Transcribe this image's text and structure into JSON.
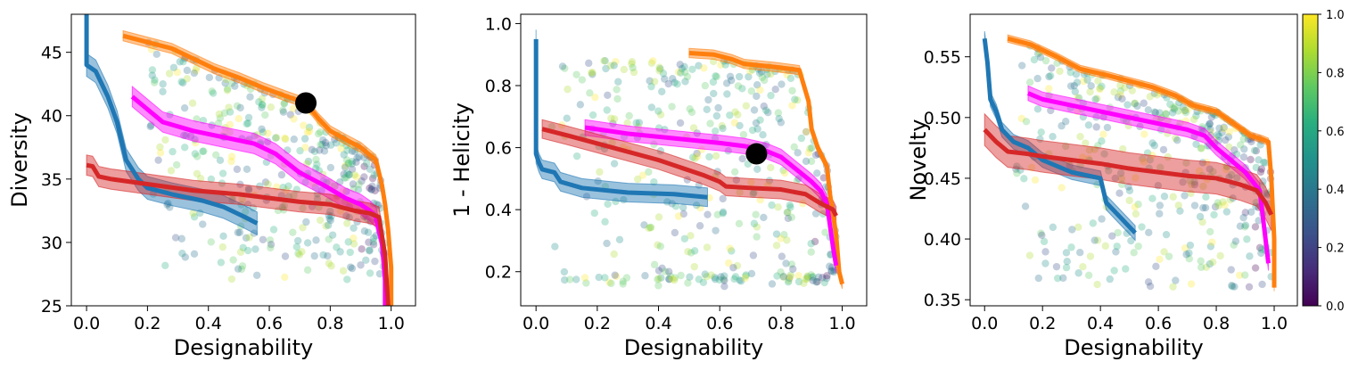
{
  "chart_data": [
    {
      "type": "scatter",
      "title": "",
      "xlabel": "Designability",
      "ylabel": "Diversity",
      "xlim": [
        -0.05,
        1.08
      ],
      "ylim": [
        25,
        48
      ],
      "xticks": [
        0.0,
        0.2,
        0.4,
        0.6,
        0.8,
        1.0
      ],
      "xtick_labels": [
        "0.0",
        "0.2",
        "0.4",
        "0.6",
        "0.8",
        "1.0"
      ],
      "yticks": [
        25,
        30,
        35,
        40,
        45
      ],
      "ytick_labels": [
        "25",
        "30",
        "35",
        "40",
        "45"
      ],
      "scatter_region": {
        "x": [
          0.2,
          0.98
        ],
        "y": [
          27,
          46
        ],
        "note": "dense cloud below orange frontier, colored by viridis value"
      },
      "highlight_point": {
        "x": 0.72,
        "y": 41.0
      },
      "series": [
        {
          "name": "blue",
          "color": "#1f77b4",
          "band": 0.9,
          "x": [
            0.0,
            0.0,
            0.0,
            0.03,
            0.07,
            0.1,
            0.13,
            0.17,
            0.2,
            0.28,
            0.38,
            0.45,
            0.52,
            0.56
          ],
          "y": [
            48,
            47,
            44,
            43.5,
            41.5,
            39.5,
            36.5,
            35.0,
            34.3,
            33.8,
            33.3,
            32.8,
            32.0,
            31.5
          ]
        },
        {
          "name": "orange",
          "color": "#ff7f0e",
          "band": 0.4,
          "x": [
            0.12,
            0.2,
            0.28,
            0.35,
            0.42,
            0.5,
            0.58,
            0.66,
            0.72,
            0.76,
            0.8,
            0.86,
            0.9,
            0.95,
            0.97,
            0.98,
            0.99,
            1.0,
            1.0
          ],
          "y": [
            46.3,
            45.8,
            45.3,
            44.5,
            43.7,
            43.0,
            42.2,
            41.5,
            41.0,
            39.8,
            38.8,
            38.0,
            37.5,
            36.5,
            34.5,
            33.0,
            31.0,
            28.0,
            25.0
          ]
        },
        {
          "name": "magenta",
          "color": "#ff00ff",
          "band": 0.8,
          "x": [
            0.15,
            0.2,
            0.25,
            0.35,
            0.45,
            0.55,
            0.62,
            0.7,
            0.78,
            0.85,
            0.9,
            0.93,
            0.95,
            0.96,
            0.97,
            0.98,
            0.98
          ],
          "y": [
            41.5,
            40.5,
            39.5,
            38.8,
            38.3,
            37.8,
            37.0,
            35.5,
            34.5,
            33.5,
            33.0,
            32.5,
            32.0,
            31.0,
            30.0,
            27.0,
            25.0
          ]
        },
        {
          "name": "red",
          "color": "#d62728",
          "band": 0.8,
          "x": [
            0.0,
            0.02,
            0.04,
            0.08,
            0.2,
            0.35,
            0.5,
            0.6,
            0.7,
            0.8,
            0.88,
            0.93,
            0.96,
            0.98,
            0.99
          ],
          "y": [
            36.1,
            36.0,
            35.2,
            35.0,
            34.6,
            34.1,
            33.8,
            33.5,
            33.2,
            33.0,
            32.5,
            32.3,
            32.0,
            29.0,
            25.0
          ]
        }
      ]
    },
    {
      "type": "scatter",
      "title": "",
      "xlabel": "Designability",
      "ylabel": "1 - Helicity",
      "xlim": [
        -0.05,
        1.08
      ],
      "ylim": [
        0.09,
        1.03
      ],
      "xticks": [
        0.0,
        0.2,
        0.4,
        0.6,
        0.8,
        1.0
      ],
      "xtick_labels": [
        "0.0",
        "0.2",
        "0.4",
        "0.6",
        "0.8",
        "1.0"
      ],
      "yticks": [
        0.2,
        0.4,
        0.6,
        0.8,
        1.0
      ],
      "ytick_labels": [
        "0.2",
        "0.4",
        "0.6",
        "0.8",
        "1.0"
      ],
      "scatter_region": {
        "x": [
          0.05,
          0.98
        ],
        "y": [
          0.15,
          0.88
        ],
        "note": "broad cloud plus a low band near 0.17"
      },
      "highlight_point": {
        "x": 0.72,
        "y": 0.58
      },
      "series": [
        {
          "name": "blue",
          "color": "#1f77b4",
          "band": 0.03,
          "x": [
            0.0,
            0.0,
            0.0,
            0.01,
            0.02,
            0.06,
            0.08,
            0.15,
            0.3,
            0.45,
            0.56
          ],
          "y": [
            0.95,
            0.8,
            0.58,
            0.55,
            0.53,
            0.52,
            0.49,
            0.47,
            0.455,
            0.45,
            0.44
          ]
        },
        {
          "name": "orange",
          "color": "#ff7f0e",
          "band": 0.015,
          "x": [
            0.5,
            0.58,
            0.64,
            0.68,
            0.78,
            0.86,
            0.89,
            0.9,
            0.92,
            0.95,
            0.96,
            0.98,
            0.99,
            1.0
          ],
          "y": [
            0.905,
            0.9,
            0.885,
            0.87,
            0.86,
            0.85,
            0.75,
            0.66,
            0.6,
            0.54,
            0.45,
            0.32,
            0.2,
            0.16
          ]
        },
        {
          "name": "magenta",
          "color": "#ff00ff",
          "band": 0.025,
          "x": [
            0.16,
            0.3,
            0.45,
            0.6,
            0.68,
            0.75,
            0.8,
            0.85,
            0.9,
            0.93,
            0.95,
            0.96,
            0.97,
            0.98
          ],
          "y": [
            0.665,
            0.645,
            0.63,
            0.615,
            0.605,
            0.59,
            0.57,
            0.53,
            0.49,
            0.46,
            0.42,
            0.35,
            0.28,
            0.22
          ]
        },
        {
          "name": "red",
          "color": "#d62728",
          "band": 0.03,
          "x": [
            0.02,
            0.1,
            0.25,
            0.4,
            0.55,
            0.6,
            0.62,
            0.7,
            0.8,
            0.88,
            0.93,
            0.97,
            0.98
          ],
          "y": [
            0.66,
            0.64,
            0.6,
            0.56,
            0.51,
            0.49,
            0.475,
            0.47,
            0.465,
            0.45,
            0.42,
            0.4,
            0.38
          ]
        }
      ]
    },
    {
      "type": "scatter",
      "title": "",
      "xlabel": "Designability",
      "ylabel": "Novelty",
      "xlim": [
        -0.05,
        1.08
      ],
      "ylim": [
        0.345,
        0.585
      ],
      "xticks": [
        0.0,
        0.2,
        0.4,
        0.6,
        0.8,
        1.0
      ],
      "xtick_labels": [
        "0.0",
        "0.2",
        "0.4",
        "0.6",
        "0.8",
        "1.0"
      ],
      "yticks": [
        0.35,
        0.4,
        0.45,
        0.5,
        0.55
      ],
      "ytick_labels": [
        "0.35",
        "0.40",
        "0.45",
        "0.50",
        "0.55"
      ],
      "scatter_region": {
        "x": [
          0.1,
          0.99
        ],
        "y": [
          0.36,
          0.56
        ],
        "note": "cloud colored by viridis value"
      },
      "series": [
        {
          "name": "blue",
          "color": "#1f77b4",
          "band": 0.006,
          "x": [
            0.0,
            0.01,
            0.02,
            0.04,
            0.06,
            0.1,
            0.15,
            0.2,
            0.3,
            0.4,
            0.42,
            0.46,
            0.52
          ],
          "y": [
            0.565,
            0.545,
            0.515,
            0.505,
            0.49,
            0.48,
            0.475,
            0.465,
            0.455,
            0.45,
            0.43,
            0.42,
            0.405
          ]
        },
        {
          "name": "orange",
          "color": "#ff7f0e",
          "band": 0.003,
          "x": [
            0.08,
            0.16,
            0.25,
            0.33,
            0.42,
            0.5,
            0.58,
            0.66,
            0.72,
            0.8,
            0.86,
            0.92,
            0.96,
            0.98,
            0.99,
            1.0,
            1.0
          ],
          "y": [
            0.565,
            0.56,
            0.55,
            0.54,
            0.535,
            0.53,
            0.525,
            0.518,
            0.51,
            0.505,
            0.495,
            0.485,
            0.482,
            0.48,
            0.45,
            0.4,
            0.36
          ]
        },
        {
          "name": "magenta",
          "color": "#ff00ff",
          "band": 0.006,
          "x": [
            0.15,
            0.2,
            0.3,
            0.4,
            0.5,
            0.6,
            0.7,
            0.76,
            0.8,
            0.85,
            0.9,
            0.95,
            0.96,
            0.97,
            0.98
          ],
          "y": [
            0.52,
            0.515,
            0.51,
            0.505,
            0.5,
            0.495,
            0.49,
            0.485,
            0.475,
            0.465,
            0.455,
            0.44,
            0.42,
            0.4,
            0.38
          ]
        },
        {
          "name": "red",
          "color": "#d62728",
          "band": 0.013,
          "x": [
            0.0,
            0.02,
            0.04,
            0.08,
            0.15,
            0.2,
            0.3,
            0.4,
            0.5,
            0.6,
            0.7,
            0.8,
            0.88,
            0.94,
            0.97,
            0.99
          ],
          "y": [
            0.49,
            0.485,
            0.48,
            0.472,
            0.47,
            0.468,
            0.465,
            0.462,
            0.458,
            0.455,
            0.452,
            0.45,
            0.445,
            0.44,
            0.43,
            0.42
          ]
        }
      ]
    }
  ],
  "colorbar": {
    "colormap": "viridis",
    "range": [
      0.0,
      1.0
    ],
    "ticks": [
      0.0,
      0.2,
      0.4,
      0.6,
      0.8,
      1.0
    ],
    "tick_labels": [
      "0.0",
      "0.2",
      "0.4",
      "0.6",
      "0.8",
      "1.0"
    ]
  },
  "colors": {
    "blue": "#1f77b4",
    "orange": "#ff7f0e",
    "magenta": "#ff00ff",
    "red": "#d62728"
  }
}
